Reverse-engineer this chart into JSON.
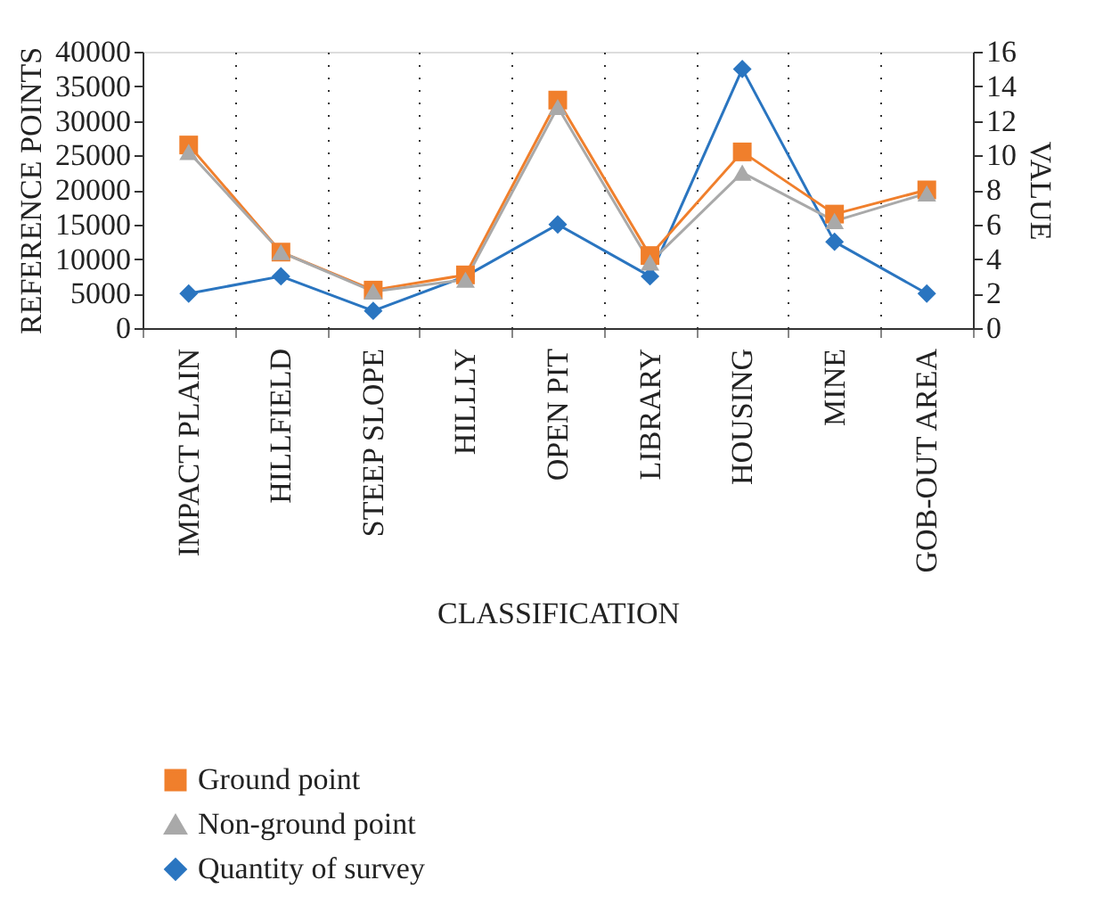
{
  "chart_data": {
    "type": "line",
    "xlabel": "CLASSIFICATION",
    "ylabel": "REFERENCE POINTS",
    "y2label": "VALUE",
    "categories": [
      "IMPACT PLAIN",
      "HILLFIELD",
      "STEEP SLOPE",
      "HILLLY",
      "OPEN PIT",
      "LIBRARY",
      "HOUSING",
      "MINE",
      "GOB-OUT AREA"
    ],
    "series": [
      {
        "name": "Ground point",
        "color": "#f07f2c",
        "marker": "square",
        "values": [
          26500,
          11000,
          5500,
          7700,
          33000,
          10500,
          25500,
          16500,
          20000
        ]
      },
      {
        "name": "Non-ground point",
        "color": "#a9a9a9",
        "marker": "triangle",
        "values": [
          25500,
          11000,
          5300,
          7000,
          32000,
          9500,
          22500,
          15500,
          19500
        ]
      },
      {
        "name": "Quantity of survey",
        "color": "#2a75c0",
        "marker": "diamond",
        "axis": "y2",
        "values": [
          2,
          3,
          1,
          3,
          6,
          3,
          15,
          5,
          2
        ]
      }
    ],
    "ylim": [
      0,
      40000
    ],
    "yticks": [
      0,
      5000,
      10000,
      15000,
      20000,
      25000,
      30000,
      35000,
      40000
    ],
    "y2lim": [
      0,
      16
    ],
    "y2ticks": [
      0,
      2,
      4,
      6,
      8,
      10,
      12,
      14,
      16
    ],
    "grid": "x",
    "legend": "bottom"
  }
}
